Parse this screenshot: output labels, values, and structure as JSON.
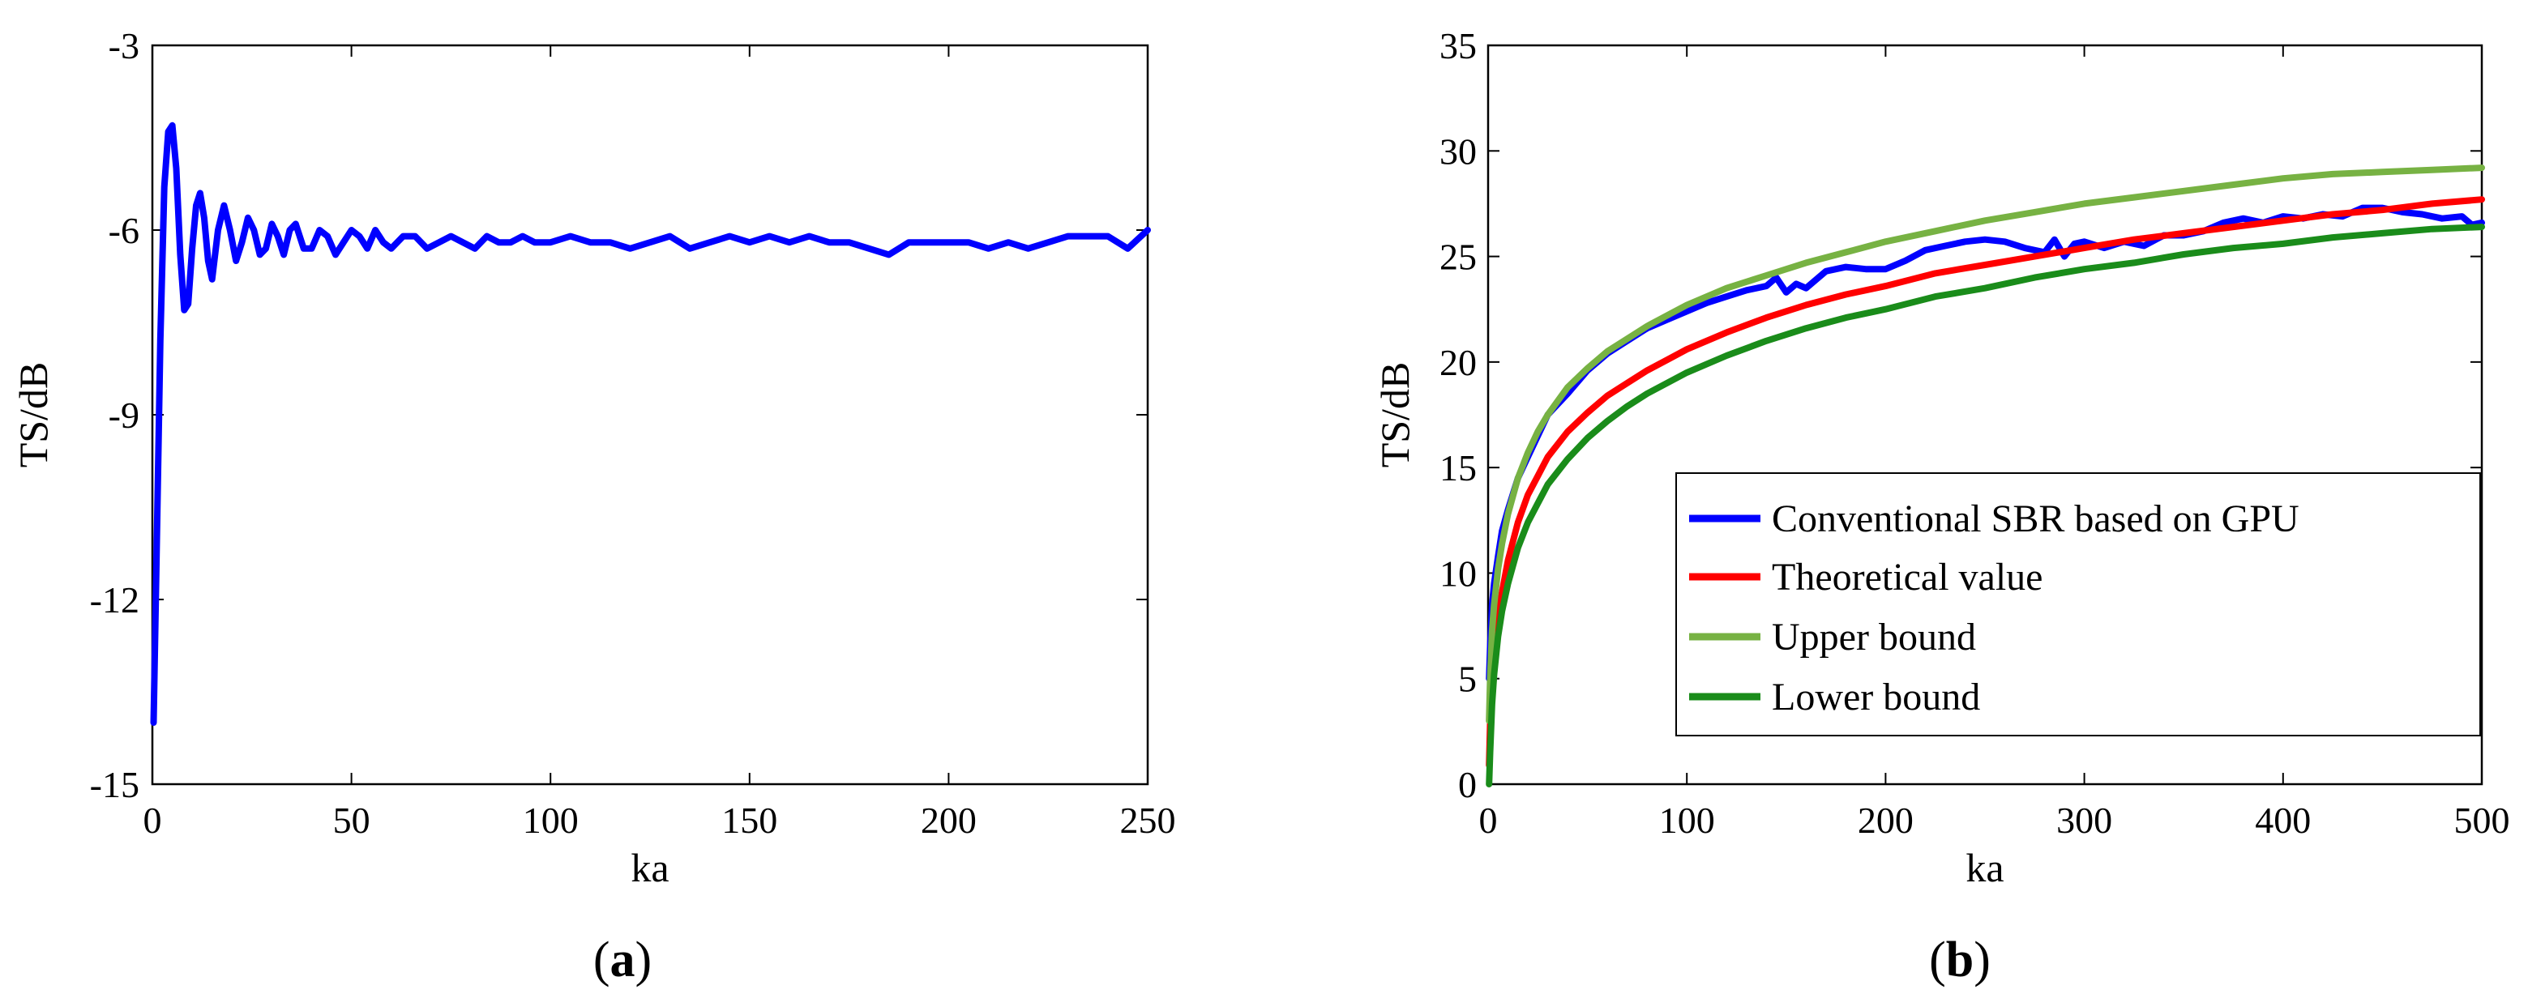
{
  "chart_data": [
    {
      "type": "line",
      "panel_label": {
        "open": "(",
        "letter": "a",
        "close": ")"
      },
      "xlabel": "ka",
      "ylabel": "TS/dB",
      "xlim": [
        0,
        250
      ],
      "ylim": [
        -15,
        -3
      ],
      "xticks": [
        0,
        50,
        100,
        150,
        200,
        250
      ],
      "xtick_labels": [
        "0",
        "50",
        "100",
        "150",
        "200",
        "250"
      ],
      "yticks": [
        -15,
        -12,
        -9,
        -6,
        -3
      ],
      "ytick_labels": [
        "-15",
        "-12",
        "-9",
        "-6",
        "-3"
      ],
      "grid": false,
      "series": [
        {
          "name": "TS",
          "color": "#0000ff",
          "x": [
            0.3,
            1.0,
            2.0,
            3.0,
            4.0,
            5.0,
            6.0,
            7.0,
            8.0,
            9.0,
            10.0,
            11.0,
            12.0,
            13.0,
            14.0,
            15.0,
            16.5,
            18.0,
            19.5,
            21.0,
            22.5,
            24.0,
            25.5,
            27.0,
            28.5,
            30.0,
            31.5,
            33.0,
            34.5,
            36.0,
            38.0,
            40.0,
            42.0,
            44.0,
            46.0,
            48.0,
            50.0,
            52.0,
            54.0,
            56.0,
            58.0,
            60.0,
            63.0,
            66.0,
            69.0,
            72.0,
            75.0,
            78.0,
            81.0,
            84.0,
            87.0,
            90.0,
            93.0,
            96.0,
            100.0,
            105.0,
            110.0,
            115.0,
            120.0,
            125.0,
            130.0,
            135.0,
            140.0,
            145.0,
            150.0,
            155.0,
            160.0,
            165.0,
            170.0,
            175.0,
            180.0,
            185.0,
            190.0,
            195.0,
            200.0,
            205.0,
            210.0,
            215.0,
            220.0,
            225.0,
            230.0,
            235.0,
            240.0,
            245.0,
            250.0
          ],
          "y": [
            -14.0,
            -11.5,
            -7.8,
            -5.3,
            -4.4,
            -4.3,
            -5.0,
            -6.4,
            -7.3,
            -7.2,
            -6.3,
            -5.6,
            -5.4,
            -5.8,
            -6.5,
            -6.8,
            -6.0,
            -5.6,
            -6.0,
            -6.5,
            -6.2,
            -5.8,
            -6.0,
            -6.4,
            -6.3,
            -5.9,
            -6.1,
            -6.4,
            -6.0,
            -5.9,
            -6.3,
            -6.3,
            -6.0,
            -6.1,
            -6.4,
            -6.2,
            -6.0,
            -6.1,
            -6.3,
            -6.0,
            -6.2,
            -6.3,
            -6.1,
            -6.1,
            -6.3,
            -6.2,
            -6.1,
            -6.2,
            -6.3,
            -6.1,
            -6.2,
            -6.2,
            -6.1,
            -6.2,
            -6.2,
            -6.1,
            -6.2,
            -6.2,
            -6.3,
            -6.2,
            -6.1,
            -6.3,
            -6.2,
            -6.1,
            -6.2,
            -6.1,
            -6.2,
            -6.1,
            -6.2,
            -6.2,
            -6.3,
            -6.4,
            -6.2,
            -6.2,
            -6.2,
            -6.2,
            -6.3,
            -6.2,
            -6.3,
            -6.2,
            -6.1,
            -6.1,
            -6.1,
            -6.3,
            -6.0
          ]
        }
      ]
    },
    {
      "type": "line",
      "panel_label": {
        "open": "(",
        "letter": "b",
        "close": ")"
      },
      "xlabel": "ka",
      "ylabel": "TS/dB",
      "xlim": [
        0,
        500
      ],
      "ylim": [
        0,
        35
      ],
      "xticks": [
        0,
        100,
        200,
        300,
        400,
        500
      ],
      "xtick_labels": [
        "0",
        "100",
        "200",
        "300",
        "400",
        "500"
      ],
      "yticks": [
        0,
        5,
        10,
        15,
        20,
        25,
        30,
        35
      ],
      "ytick_labels": [
        "0",
        "5",
        "10",
        "15",
        "20",
        "25",
        "30",
        "35"
      ],
      "grid": false,
      "legend_position": "lower-right",
      "series": [
        {
          "name": "Conventional SBR based on GPU",
          "color": "#0000ff",
          "x": [
            0.5,
            1,
            2,
            3,
            5,
            7,
            10,
            15,
            20,
            25,
            30,
            40,
            50,
            60,
            70,
            80,
            90,
            100,
            110,
            120,
            130,
            140,
            145,
            150,
            155,
            160,
            170,
            180,
            190,
            200,
            210,
            220,
            230,
            240,
            250,
            260,
            270,
            280,
            285,
            290,
            295,
            300,
            310,
            320,
            330,
            340,
            350,
            360,
            370,
            380,
            390,
            400,
            410,
            420,
            430,
            440,
            450,
            460,
            470,
            480,
            490,
            495,
            500
          ],
          "y": [
            5.0,
            6.5,
            8.5,
            9.5,
            10.8,
            12.0,
            13.0,
            14.5,
            15.5,
            16.5,
            17.5,
            18.5,
            19.6,
            20.4,
            21.0,
            21.6,
            22.0,
            22.4,
            22.8,
            23.1,
            23.4,
            23.6,
            24.0,
            23.3,
            23.7,
            23.5,
            24.3,
            24.5,
            24.4,
            24.4,
            24.8,
            25.3,
            25.5,
            25.7,
            25.8,
            25.7,
            25.4,
            25.2,
            25.8,
            25.0,
            25.6,
            25.7,
            25.4,
            25.7,
            25.5,
            26.0,
            26.0,
            26.2,
            26.6,
            26.8,
            26.6,
            26.9,
            26.8,
            27.0,
            26.9,
            27.3,
            27.3,
            27.1,
            27.0,
            26.8,
            26.9,
            26.5,
            26.6
          ]
        },
        {
          "name": "Theoretical value",
          "color": "#ff0000",
          "x": [
            0.5,
            1,
            2,
            3,
            5,
            7,
            10,
            15,
            20,
            25,
            30,
            40,
            50,
            60,
            70,
            80,
            90,
            100,
            120,
            140,
            160,
            180,
            200,
            225,
            250,
            275,
            300,
            325,
            350,
            375,
            400,
            425,
            450,
            475,
            500
          ],
          "y": [
            0.9,
            2.9,
            4.9,
            6.5,
            8.0,
            9.1,
            10.6,
            12.4,
            13.7,
            14.6,
            15.5,
            16.7,
            17.6,
            18.4,
            19.0,
            19.6,
            20.1,
            20.6,
            21.4,
            22.1,
            22.7,
            23.2,
            23.6,
            24.2,
            24.6,
            25.0,
            25.4,
            25.8,
            26.1,
            26.4,
            26.7,
            27.0,
            27.2,
            27.5,
            27.7
          ]
        },
        {
          "name": "Upper bound",
          "color": "#77b243",
          "x": [
            0.5,
            1,
            2,
            3,
            5,
            7,
            10,
            15,
            20,
            25,
            30,
            40,
            50,
            60,
            70,
            80,
            90,
            100,
            120,
            140,
            160,
            180,
            200,
            225,
            250,
            275,
            300,
            325,
            350,
            375,
            400,
            425,
            450,
            475,
            500
          ],
          "y": [
            3.0,
            5.0,
            7.3,
            8.5,
            10.2,
            11.4,
            12.8,
            14.5,
            15.7,
            16.7,
            17.5,
            18.8,
            19.7,
            20.5,
            21.1,
            21.7,
            22.2,
            22.7,
            23.5,
            24.1,
            24.7,
            25.2,
            25.7,
            26.2,
            26.7,
            27.1,
            27.5,
            27.8,
            28.1,
            28.4,
            28.7,
            28.9,
            29.0,
            29.1,
            29.2
          ]
        },
        {
          "name": "Lower bound",
          "color": "#1a8c1a",
          "x": [
            0.5,
            1,
            2,
            3,
            5,
            7,
            10,
            15,
            20,
            25,
            30,
            40,
            50,
            60,
            70,
            80,
            90,
            100,
            120,
            140,
            160,
            180,
            200,
            225,
            250,
            275,
            300,
            325,
            350,
            375,
            400,
            425,
            450,
            475,
            500
          ],
          "y": [
            0.0,
            1.5,
            3.8,
            5.2,
            7.0,
            8.2,
            9.5,
            11.2,
            12.4,
            13.3,
            14.2,
            15.4,
            16.4,
            17.2,
            17.9,
            18.5,
            19.0,
            19.5,
            20.3,
            21.0,
            21.6,
            22.1,
            22.5,
            23.1,
            23.5,
            24.0,
            24.4,
            24.7,
            25.1,
            25.4,
            25.6,
            25.9,
            26.1,
            26.3,
            26.4
          ]
        }
      ]
    }
  ]
}
